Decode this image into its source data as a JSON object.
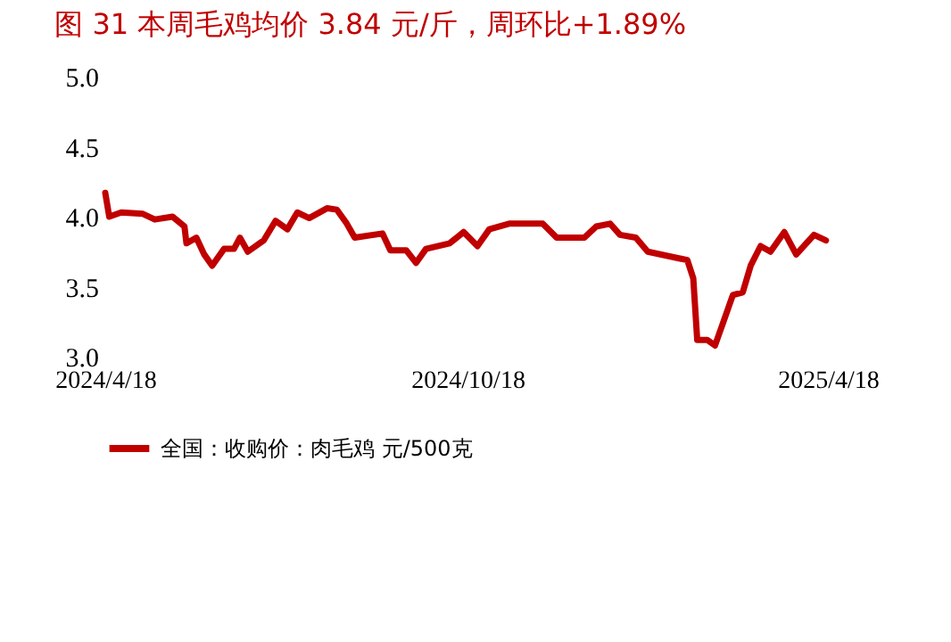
{
  "chart_data": {
    "type": "line",
    "title": "图 31 本周毛鸡均价 3.84 元/斤，周环比+1.89%",
    "x": [
      "2024-04-18",
      "2024-04-20",
      "2024-04-26",
      "2024-05-07",
      "2024-05-13",
      "2024-05-22",
      "2024-05-28",
      "2024-05-29",
      "2024-06-03",
      "2024-06-07",
      "2024-06-11",
      "2024-06-17",
      "2024-06-22",
      "2024-06-25",
      "2024-06-29",
      "2024-07-07",
      "2024-07-13",
      "2024-07-19",
      "2024-07-24",
      "2024-07-30",
      "2024-08-08",
      "2024-08-13",
      "2024-08-18",
      "2024-08-22",
      "2024-09-05",
      "2024-09-09",
      "2024-09-17",
      "2024-09-22",
      "2024-09-27",
      "2024-10-09",
      "2024-10-16",
      "2024-10-23",
      "2024-10-29",
      "2024-11-08",
      "2024-11-25",
      "2024-12-02",
      "2024-12-16",
      "2024-12-22",
      "2024-12-29",
      "2025-01-03",
      "2025-01-11",
      "2025-01-17",
      "2025-02-06",
      "2025-02-09",
      "2025-02-11",
      "2025-02-16",
      "2025-02-20",
      "2025-02-24",
      "2025-03-01",
      "2025-03-06",
      "2025-03-10",
      "2025-03-15",
      "2025-03-20",
      "2025-03-27",
      "2025-04-02",
      "2025-04-11",
      "2025-04-17"
    ],
    "series": [
      {
        "name": "全国：收购价：肉毛鸡 元/500克",
        "color": "#c00000",
        "values": [
          4.17,
          4.0,
          4.03,
          4.02,
          3.98,
          4.0,
          3.93,
          3.81,
          3.85,
          3.73,
          3.65,
          3.77,
          3.77,
          3.85,
          3.75,
          3.83,
          3.97,
          3.91,
          4.03,
          3.99,
          4.06,
          4.05,
          3.95,
          3.85,
          3.88,
          3.76,
          3.76,
          3.67,
          3.77,
          3.81,
          3.89,
          3.79,
          3.91,
          3.95,
          3.95,
          3.85,
          3.85,
          3.93,
          3.95,
          3.87,
          3.85,
          3.75,
          3.69,
          3.56,
          3.12,
          3.12,
          3.08,
          3.24,
          3.44,
          3.46,
          3.65,
          3.79,
          3.75,
          3.89,
          3.73,
          3.87,
          3.83
        ]
      }
    ],
    "xlim": [
      "2024-04-18",
      "2025-04-18"
    ],
    "xticks": [
      {
        "value": "2024-04-18",
        "label": "2024/4/18"
      },
      {
        "value": "2024-10-18",
        "label": "2024/10/18"
      },
      {
        "value": "2025-04-18",
        "label": "2025/4/18"
      }
    ],
    "ylim": [
      3.0,
      5.0
    ],
    "yticks": [
      {
        "value": 3.0,
        "label": "3.0"
      },
      {
        "value": 3.5,
        "label": "3.5"
      },
      {
        "value": 4.0,
        "label": "4.0"
      },
      {
        "value": 4.5,
        "label": "4.5"
      },
      {
        "value": 5.0,
        "label": "5.0"
      }
    ],
    "grid": false,
    "legend": "bottom",
    "line_style": "solid",
    "marker": "none"
  }
}
